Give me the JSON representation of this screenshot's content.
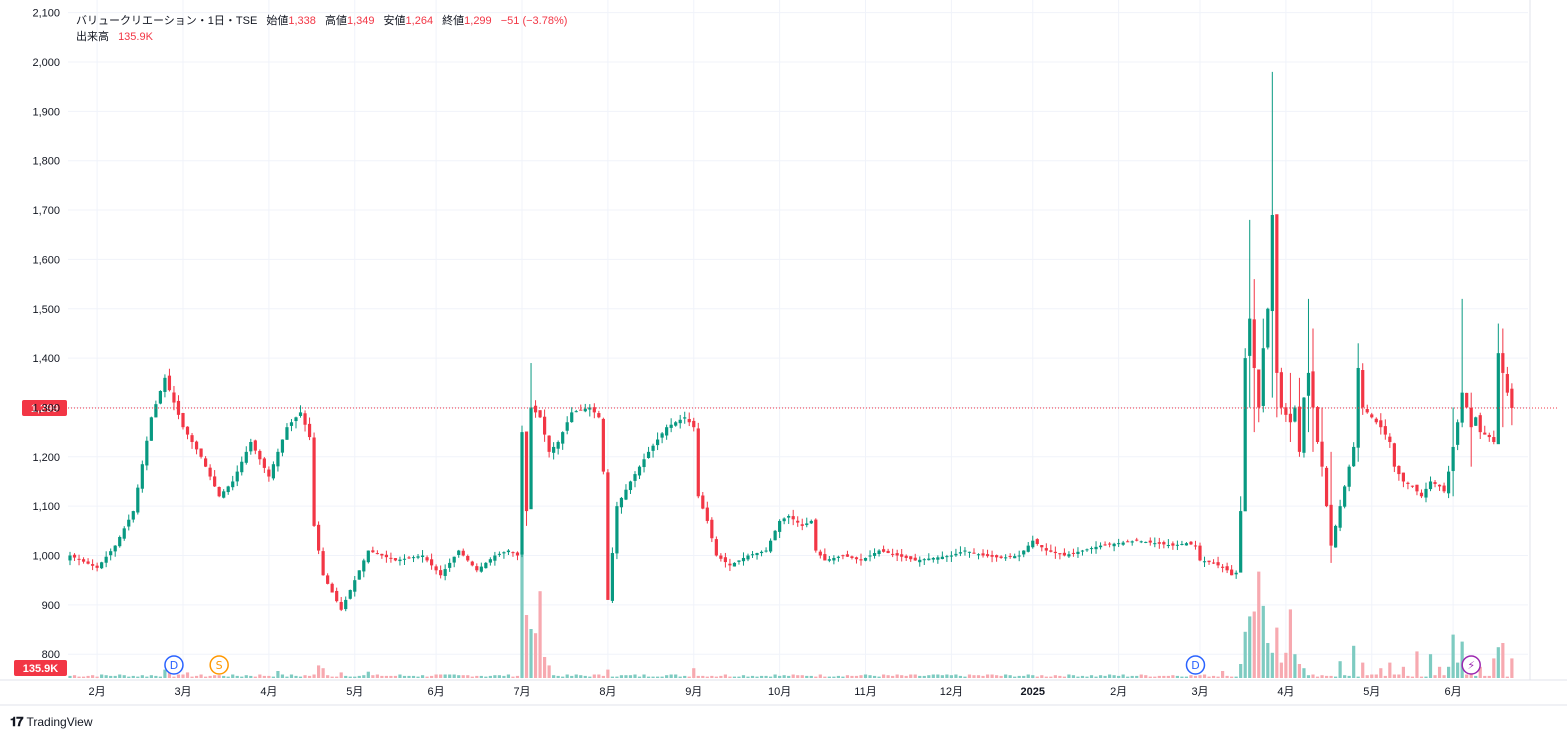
{
  "legend": {
    "symbol": "バリュークリエーション・1日・TSE",
    "open_label": "始値",
    "open_value": "1,338",
    "high_label": "高値",
    "high_value": "1,349",
    "low_label": "安値",
    "low_value": "1,264",
    "close_label": "終値",
    "close_value": "1,299",
    "change": "−51 (−3.78%)",
    "volume_label": "出来高",
    "volume_value": "135.9K"
  },
  "price_badge": "1,299",
  "volume_badge": "135.9K",
  "brand": "TradingView",
  "colors": {
    "up": "#089981",
    "down": "#f23645",
    "up_vol": "#7ecbc1",
    "down_vol": "#f7a9b0"
  },
  "chart_data": {
    "type": "candlestick",
    "y_ticks": [
      "2,100",
      "2,000",
      "1,900",
      "1,800",
      "1,700",
      "1,600",
      "1,500",
      "1,400",
      "1,300",
      "1,200",
      "1,100",
      "1,000",
      "900",
      "800"
    ],
    "ylim": [
      750,
      2100
    ],
    "last_price": 1299,
    "x_ticks": [
      {
        "label": "2月",
        "i": 6
      },
      {
        "label": "3月",
        "i": 25
      },
      {
        "label": "4月",
        "i": 44
      },
      {
        "label": "5月",
        "i": 63
      },
      {
        "label": "6月",
        "i": 81
      },
      {
        "label": "7月",
        "i": 100
      },
      {
        "label": "8月",
        "i": 119
      },
      {
        "label": "9月",
        "i": 138
      },
      {
        "label": "10月",
        "i": 157
      },
      {
        "label": "11月",
        "i": 176
      },
      {
        "label": "12月",
        "i": 195
      },
      {
        "label": "2025",
        "i": 213
      },
      {
        "label": "2月",
        "i": 232
      },
      {
        "label": "3月",
        "i": 250
      },
      {
        "label": "4月",
        "i": 269
      },
      {
        "label": "5月",
        "i": 288
      },
      {
        "label": "6月",
        "i": 306
      }
    ],
    "markers": [
      {
        "i": 23,
        "label": "D",
        "color": "#2962ff"
      },
      {
        "i": 33,
        "label": "S",
        "color": "#ff9800"
      },
      {
        "i": 249,
        "label": "D",
        "color": "#2962ff"
      },
      {
        "i": 310,
        "label": "⚡",
        "color": "#9c27b0"
      }
    ],
    "anchors": [
      [
        0,
        1000
      ],
      [
        6,
        975
      ],
      [
        10,
        1020
      ],
      [
        14,
        1090
      ],
      [
        18,
        1280
      ],
      [
        21,
        1360
      ],
      [
        25,
        1260
      ],
      [
        29,
        1200
      ],
      [
        33,
        1120
      ],
      [
        36,
        1150
      ],
      [
        40,
        1230
      ],
      [
        44,
        1160
      ],
      [
        48,
        1260
      ],
      [
        51,
        1290
      ],
      [
        53,
        1240
      ],
      [
        54,
        1060
      ],
      [
        56,
        960
      ],
      [
        60,
        890
      ],
      [
        62,
        930
      ],
      [
        66,
        1010
      ],
      [
        72,
        990
      ],
      [
        78,
        1000
      ],
      [
        82,
        960
      ],
      [
        86,
        1010
      ],
      [
        90,
        970
      ],
      [
        94,
        1000
      ],
      [
        97,
        1010
      ],
      [
        99,
        1000
      ],
      [
        100,
        1250
      ],
      [
        101,
        1090
      ],
      [
        102,
        1300
      ],
      [
        104,
        1280
      ],
      [
        106,
        1210
      ],
      [
        108,
        1230
      ],
      [
        111,
        1290
      ],
      [
        115,
        1300
      ],
      [
        117,
        1280
      ],
      [
        118,
        1170
      ],
      [
        119,
        910
      ],
      [
        121,
        1100
      ],
      [
        124,
        1150
      ],
      [
        128,
        1210
      ],
      [
        132,
        1260
      ],
      [
        136,
        1280
      ],
      [
        138,
        1260
      ],
      [
        139,
        1120
      ],
      [
        141,
        1070
      ],
      [
        143,
        1000
      ],
      [
        146,
        980
      ],
      [
        150,
        1000
      ],
      [
        154,
        1010
      ],
      [
        157,
        1070
      ],
      [
        159,
        1080
      ],
      [
        162,
        1060
      ],
      [
        164,
        1070
      ],
      [
        165,
        1010
      ],
      [
        167,
        990
      ],
      [
        171,
        1000
      ],
      [
        175,
        990
      ],
      [
        179,
        1010
      ],
      [
        183,
        1000
      ],
      [
        187,
        990
      ],
      [
        191,
        995
      ],
      [
        195,
        1000
      ],
      [
        198,
        1010
      ],
      [
        202,
        1000
      ],
      [
        206,
        995
      ],
      [
        210,
        1000
      ],
      [
        213,
        1030
      ],
      [
        216,
        1010
      ],
      [
        220,
        1000
      ],
      [
        224,
        1010
      ],
      [
        228,
        1020
      ],
      [
        232,
        1025
      ],
      [
        236,
        1030
      ],
      [
        240,
        1025
      ],
      [
        244,
        1020
      ],
      [
        247,
        1025
      ],
      [
        249,
        1020
      ],
      [
        250,
        990
      ],
      [
        253,
        985
      ],
      [
        256,
        970
      ],
      [
        257,
        960
      ],
      [
        258,
        965
      ],
      [
        259,
        1090
      ],
      [
        260,
        1400
      ],
      [
        261,
        1480
      ],
      [
        262,
        1380
      ],
      [
        263,
        1300
      ],
      [
        264,
        1420
      ],
      [
        265,
        1500
      ],
      [
        266,
        1690
      ],
      [
        267,
        1370
      ],
      [
        268,
        1300
      ],
      [
        270,
        1270
      ],
      [
        271,
        1300
      ],
      [
        272,
        1210
      ],
      [
        273,
        1320
      ],
      [
        274,
        1370
      ],
      [
        275,
        1300
      ],
      [
        276,
        1230
      ],
      [
        277,
        1180
      ],
      [
        278,
        1100
      ],
      [
        279,
        1020
      ],
      [
        280,
        1060
      ],
      [
        282,
        1140
      ],
      [
        283,
        1180
      ],
      [
        284,
        1220
      ],
      [
        285,
        1380
      ],
      [
        286,
        1300
      ],
      [
        288,
        1280
      ],
      [
        290,
        1260
      ],
      [
        292,
        1230
      ],
      [
        293,
        1180
      ],
      [
        295,
        1150
      ],
      [
        297,
        1140
      ],
      [
        299,
        1120
      ],
      [
        301,
        1150
      ],
      [
        303,
        1140
      ],
      [
        304,
        1130
      ],
      [
        305,
        1170
      ],
      [
        306,
        1220
      ],
      [
        307,
        1270
      ],
      [
        308,
        1330
      ],
      [
        309,
        1300
      ],
      [
        310,
        1260
      ],
      [
        311,
        1280
      ],
      [
        312,
        1250
      ],
      [
        314,
        1240
      ],
      [
        315,
        1230
      ],
      [
        316,
        1410
      ],
      [
        317,
        1370
      ],
      [
        318,
        1330
      ],
      [
        319,
        1299
      ]
    ],
    "spikes": {
      "259": [
        1063,
        1120
      ],
      "260": [
        1260,
        1420
      ],
      "261": [
        1300,
        1680
      ],
      "262": [
        1250,
        1560
      ],
      "263": [
        1270,
        1320
      ],
      "264": [
        1290,
        1480
      ],
      "266": [
        1320,
        1980
      ],
      "267": [
        1280,
        1470
      ],
      "270": [
        1230,
        1370
      ],
      "272": [
        1200,
        1360
      ],
      "274": [
        1250,
        1520
      ],
      "275": [
        1210,
        1460
      ],
      "277": [
        1160,
        1300
      ],
      "279": [
        985,
        1210
      ],
      "285": [
        1190,
        1430
      ],
      "306": [
        1120,
        1300
      ],
      "308": [
        1260,
        1520
      ],
      "310": [
        1180,
        1330
      ],
      "316": [
        1230,
        1470
      ],
      "317": [
        1260,
        1460
      ],
      "319": [
        1264,
        1349
      ],
      "102": [
        1250,
        1390
      ],
      "101": [
        1060,
        1240
      ]
    },
    "volumes": {
      "21": 12,
      "22": 18,
      "26": 8,
      "46": 10,
      "55": 18,
      "56": 14,
      "60": 8,
      "66": 9,
      "100": 180,
      "101": 90,
      "102": 70,
      "103": 64,
      "104": 124,
      "105": 30,
      "106": 18,
      "119": 12,
      "138": 14,
      "255": 10,
      "259": 20,
      "260": 66,
      "261": 88,
      "262": 95,
      "263": 152,
      "264": 103,
      "265": 50,
      "266": 36,
      "267": 72,
      "268": 22,
      "269": 36,
      "270": 98,
      "271": 34,
      "272": 20,
      "273": 14,
      "281": 24,
      "284": 46,
      "286": 22,
      "290": 14,
      "292": 22,
      "295": 16,
      "298": 38,
      "301": 34,
      "303": 16,
      "305": 16,
      "306": 62,
      "307": 22,
      "308": 52,
      "310": 18,
      "312": 16,
      "315": 28,
      "316": 44,
      "317": 50,
      "319": 28
    }
  }
}
